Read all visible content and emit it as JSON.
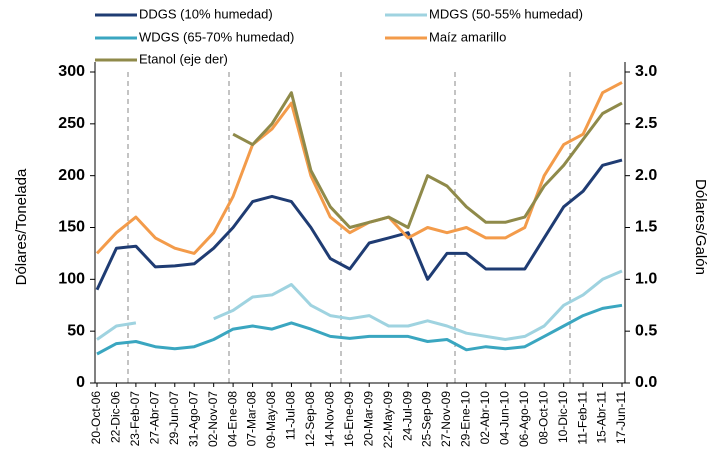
{
  "chart_data": {
    "type": "line",
    "y_label": "Dólares/Tonelada",
    "y2_label": "Dólares/Galón",
    "categories": [
      "20-Oct-06",
      "22-Dic-06",
      "23-Feb-07",
      "27-Abr-07",
      "29-Jun-07",
      "31-Ago-07",
      "02-Nov-07",
      "04-Ene-08",
      "07-Mar-08",
      "09-May-08",
      "11-Jul-08",
      "12-Sep-08",
      "14-Nov-08",
      "16-Ene-09",
      "20-Mar-09",
      "22-May-09",
      "24-Jul-09",
      "25-Sep-09",
      "27-Nov-09",
      "29-Ene-10",
      "02-Abr-10",
      "04-Jun-10",
      "06-Ago-10",
      "08-Oct-10",
      "10-Dic-10",
      "11-Feb-11",
      "15-Abr-11",
      "17-Jun-11"
    ],
    "series": [
      {
        "name": "DDGS (10% humedad)",
        "color": "#1f3c73",
        "values": [
          90,
          130,
          132,
          112,
          113,
          115,
          130,
          150,
          175,
          180,
          175,
          150,
          120,
          110,
          135,
          140,
          145,
          100,
          125,
          125,
          110,
          110,
          110,
          140,
          170,
          185,
          210,
          215
        ]
      },
      {
        "name": "MDGS (50-55% humedad)",
        "color": "#9fd3e0",
        "values": [
          42,
          55,
          58,
          null,
          null,
          null,
          62,
          70,
          83,
          85,
          95,
          75,
          65,
          62,
          65,
          55,
          55,
          60,
          55,
          48,
          45,
          42,
          45,
          55,
          75,
          85,
          100,
          108
        ]
      },
      {
        "name": "WDGS (65-70% humedad)",
        "color": "#3aa6c0",
        "values": [
          28,
          38,
          40,
          35,
          33,
          35,
          42,
          52,
          55,
          52,
          58,
          52,
          45,
          43,
          45,
          45,
          45,
          40,
          42,
          32,
          35,
          33,
          35,
          45,
          55,
          65,
          72,
          75
        ]
      },
      {
        "name": "Maíz amarillo",
        "color": "#f39b4a",
        "values": [
          125,
          145,
          160,
          140,
          130,
          125,
          145,
          180,
          230,
          245,
          270,
          200,
          160,
          145,
          155,
          160,
          140,
          150,
          145,
          150,
          140,
          140,
          150,
          200,
          230,
          240,
          280,
          290
        ]
      },
      {
        "name": "Etanol (eje der)",
        "color": "#8f8a4a",
        "axis": "y2",
        "values": [
          null,
          null,
          null,
          null,
          null,
          null,
          null,
          2.4,
          2.3,
          2.5,
          2.8,
          2.05,
          1.7,
          1.5,
          1.55,
          1.6,
          1.5,
          2.0,
          1.9,
          1.7,
          1.55,
          1.55,
          1.6,
          1.9,
          2.1,
          2.35,
          2.6,
          2.7
        ]
      }
    ],
    "ylim": [
      0,
      300
    ],
    "yticks": [
      0,
      50,
      100,
      150,
      200,
      250,
      300
    ],
    "y2lim": [
      0,
      3
    ],
    "y2ticks": [
      {
        "value": 0,
        "label": "0.0"
      },
      {
        "value": 0.5,
        "label": "0.5"
      },
      {
        "value": 1,
        "label": "1.0"
      },
      {
        "value": 1.5,
        "label": "1.5"
      },
      {
        "value": 2,
        "label": "2.0"
      },
      {
        "value": 2.5,
        "label": "2.5"
      },
      {
        "value": 3,
        "label": "3.0"
      }
    ]
  }
}
